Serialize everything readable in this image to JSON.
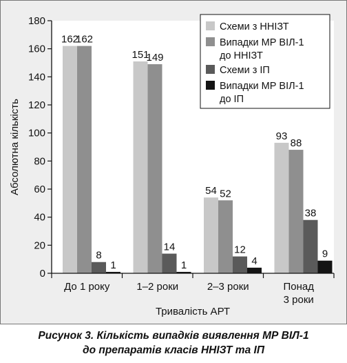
{
  "chart_data": {
    "type": "bar",
    "categories": [
      [
        "До 1 року"
      ],
      [
        "1–2 роки"
      ],
      [
        "2–3 роки"
      ],
      [
        "Понад",
        "3 роки"
      ]
    ],
    "series": [
      {
        "name": "Схеми з ННІЗТ",
        "color": "#c8c8c8",
        "values": [
          162,
          151,
          54,
          93
        ]
      },
      {
        "name": "Випадки МР ВІЛ-1 до ННІЗТ",
        "color": "#8f8f8f",
        "values": [
          162,
          149,
          52,
          88
        ]
      },
      {
        "name": "Схеми з ІП",
        "color": "#5a5a5a",
        "values": [
          8,
          14,
          12,
          38
        ]
      },
      {
        "name": "Випадки МР ВІЛ-1 до ІП",
        "color": "#141414",
        "values": [
          1,
          1,
          4,
          9
        ]
      }
    ],
    "legend_lines": [
      [
        "Схеми з ННІЗТ"
      ],
      [
        "Випадки МР ВІЛ-1",
        "до ННІЗТ"
      ],
      [
        "Схеми з ІП"
      ],
      [
        "Випадки МР ВІЛ-1",
        "до ІП"
      ]
    ],
    "xlabel": "Тривалість АРТ",
    "ylabel": "Абсолютна кількість",
    "ylim": [
      0,
      180
    ],
    "yticks": [
      0,
      20,
      40,
      60,
      80,
      100,
      120,
      140,
      160,
      180
    ],
    "grid": false,
    "legend_position": "top-right"
  },
  "caption": {
    "line1": "Рисунок 3.  Кількість випадків виявлення МР ВІЛ-1",
    "line2": "до препаратів класів ННІЗТ та ІП"
  }
}
